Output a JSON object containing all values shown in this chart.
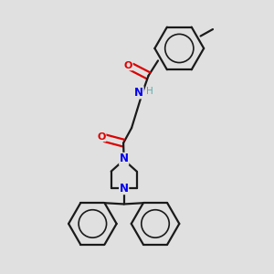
{
  "bg_color": "#e0e0e0",
  "bond_color": "#1a1a1a",
  "N_color": "#0000ee",
  "O_color": "#dd0000",
  "H_color": "#5aaaaa",
  "figsize": [
    3.0,
    3.0
  ],
  "dpi": 100,
  "xlim": [
    0,
    10
  ],
  "ylim": [
    0,
    10
  ]
}
